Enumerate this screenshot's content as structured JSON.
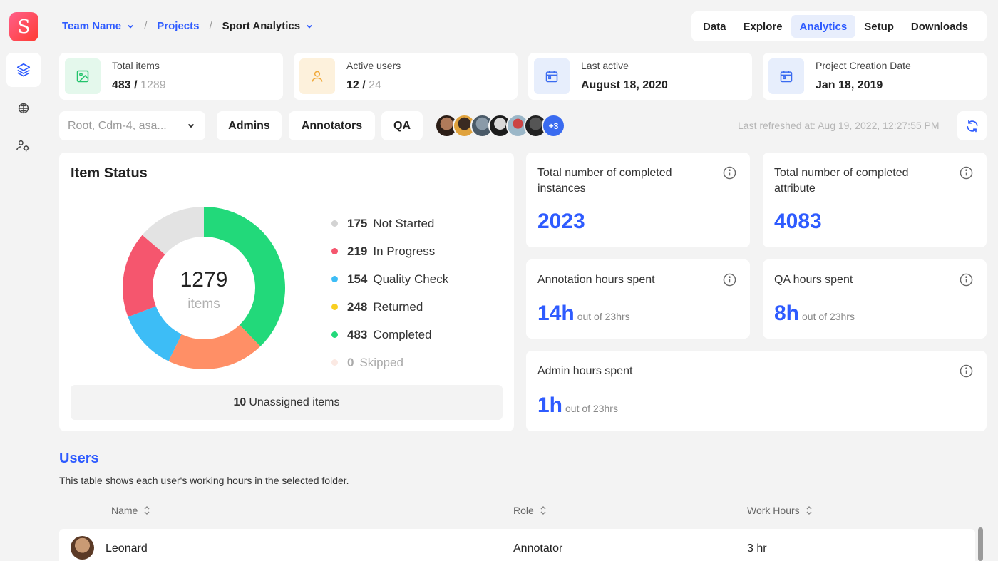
{
  "app": {
    "logo_letter": "S"
  },
  "breadcrumb": {
    "team": "Team Name",
    "projects": "Projects",
    "current": "Sport Analytics"
  },
  "topnav": {
    "tabs": [
      "Data",
      "Explore",
      "Analytics",
      "Setup",
      "Downloads"
    ],
    "active": "Analytics"
  },
  "stats": {
    "total_items": {
      "label": "Total items",
      "value": "483",
      "total": "1289"
    },
    "active_users": {
      "label": "Active users",
      "value": "12",
      "total": "24"
    },
    "last_active": {
      "label": "Last active",
      "value": "August 18, 2020"
    },
    "creation_date": {
      "label": "Project Creation Date",
      "value": "Jan 18, 2019"
    }
  },
  "filters": {
    "folder_select": "Root, Cdm-4, asa...",
    "chips": [
      "Admins",
      "Annotators",
      "QA"
    ],
    "avatars_more": "+3",
    "last_refreshed": "Last refreshed at: Aug 19, 2022, 12:27:55 PM"
  },
  "item_status": {
    "title": "Item Status",
    "total": "1279",
    "total_unit": "items",
    "legend": [
      {
        "count": "175",
        "label": "Not Started",
        "color": "#d3d3d3"
      },
      {
        "count": "219",
        "label": "In Progress",
        "color": "#f5566e"
      },
      {
        "count": "154",
        "label": "Quality Check",
        "color": "#3dbdf6"
      },
      {
        "count": "248",
        "label": "Returned",
        "color": "#f9cf20"
      },
      {
        "count": "483",
        "label": "Completed",
        "color": "#22d97a"
      },
      {
        "count": "0",
        "label": "Skipped",
        "color": "#fbe9e3"
      }
    ],
    "unassigned_count": "10",
    "unassigned_label": "Unassigned items"
  },
  "chart_data": {
    "type": "pie",
    "categories": [
      "Completed",
      "Returned",
      "Quality Check",
      "In Progress",
      "Not Started",
      "Skipped"
    ],
    "values": [
      483,
      248,
      154,
      219,
      175,
      0
    ],
    "colors": [
      "#22d97a",
      "#ff8f66",
      "#3dbdf6",
      "#f5566e",
      "#e3e3e3",
      "#fbe9e3"
    ]
  },
  "metrics": {
    "completed_instances": {
      "label": "Total number of completed instances",
      "value": "2023"
    },
    "completed_attribute": {
      "label": "Total number of completed attribute",
      "value": "4083"
    },
    "annotation_hours": {
      "label": "Annotation hours spent",
      "value": "14h",
      "sub": "out of 23hrs"
    },
    "qa_hours": {
      "label": "QA hours spent",
      "value": "8h",
      "sub": "out of 23hrs"
    },
    "admin_hours": {
      "label": "Admin hours spent",
      "value": "1h",
      "sub": "out of 23hrs"
    }
  },
  "users": {
    "title": "Users",
    "description": "This table shows each user's working hours in the selected folder.",
    "columns": [
      "Name",
      "Role",
      "Work Hours"
    ],
    "rows": [
      {
        "name": "Leonard",
        "role": "Annotator",
        "hours": "3 hr"
      }
    ]
  }
}
